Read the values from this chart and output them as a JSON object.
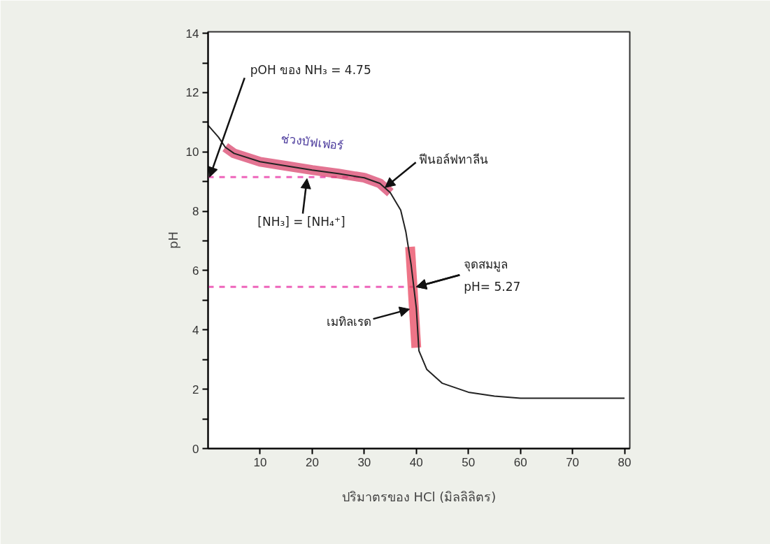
{
  "chart_data": {
    "type": "line",
    "xlabel": "ปริมาตรของ HCl (มิลลิลิตร)",
    "ylabel": "pH",
    "xlim": [
      0,
      81
    ],
    "ylim": [
      0,
      14.05
    ],
    "xticks": [
      10,
      20,
      30,
      40,
      50,
      60,
      70,
      80
    ],
    "yticks": [
      0,
      {
        "value": 1,
        "label": null
      },
      2,
      {
        "value": 3,
        "label": null
      },
      4,
      {
        "value": 5,
        "label": null
      },
      6,
      {
        "value": 7,
        "label": null
      },
      8,
      {
        "value": 9,
        "label": null
      },
      10,
      {
        "value": 11,
        "label": null
      },
      12,
      {
        "value": 13,
        "label": null
      },
      14
    ],
    "series": [
      {
        "color": "#222222",
        "x": [
          0,
          2,
          3.3,
          5,
          10,
          15,
          20,
          25,
          30,
          33,
          35,
          37,
          38,
          39,
          40,
          40.5,
          42,
          45,
          50,
          55,
          60,
          70,
          80
        ],
        "values": [
          10.9,
          10.5,
          10.16,
          9.95,
          9.67,
          9.53,
          9.39,
          9.27,
          9.13,
          8.94,
          8.63,
          8.04,
          7.3,
          6.2,
          4.74,
          3.3,
          2.67,
          2.2,
          1.9,
          1.77,
          1.7,
          1.7,
          1.7
        ]
      },
      {
        "color": "#d9466e",
        "x": [
          3.3,
          5,
          10,
          15,
          20,
          25,
          30,
          33,
          35
        ],
        "values": [
          10.16,
          9.95,
          9.67,
          9.53,
          9.39,
          9.27,
          9.13,
          8.94,
          8.63
        ]
      },
      {
        "color": "#e8455f",
        "x": [
          38.8,
          40
        ],
        "values": [
          6.8,
          3.4
        ]
      }
    ],
    "ref_lines": [
      {
        "axis": "y",
        "value": 9.15,
        "color": "#ee66bb",
        "line_style": "dashed"
      },
      {
        "axis": "y",
        "value": 5.45,
        "color": "#ee66bb",
        "line_style": "dashed"
      }
    ],
    "annotations": [
      {
        "text": "pOH ของ NH₃ = 4.75",
        "x": 0.3,
        "y": 9.15
      },
      {
        "text": "ช่วงบัฟเฟอร์",
        "x": 20,
        "y": 9.39
      },
      {
        "text": "ฟีนอล์ฟทาลีน",
        "x": 34,
        "y": 8.8
      },
      {
        "text": "[NH₃] = [NH₄⁺]",
        "x": 19,
        "y": 9.1
      },
      {
        "text": "จุดสมมูล",
        "x": 40,
        "y": 5.45
      },
      {
        "text": "pH= 5.27",
        "x": 40,
        "y": 5.45
      },
      {
        "text": "เมทิลเรด",
        "x": 38.7,
        "y": 4.7
      }
    ],
    "grid": false
  }
}
